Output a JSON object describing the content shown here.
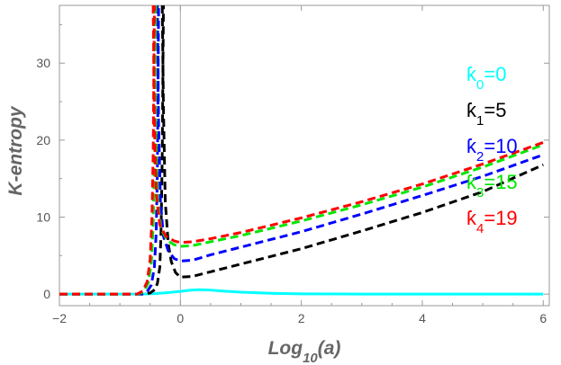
{
  "chart_data": {
    "type": "line",
    "xlabel": "Log10(a)",
    "xlabel_base": "Log",
    "xlabel_sub": "10",
    "xlabel_suffix": "(a)",
    "ylabel": "K-entropy",
    "xlim": [
      -2,
      6.1
    ],
    "ylim": [
      -1.5,
      37.5
    ],
    "x_ticks": [
      -2,
      0,
      2,
      4,
      6
    ],
    "y_ticks": [
      0,
      10,
      20,
      30
    ],
    "grid": false,
    "legend_position": "right",
    "series": [
      {
        "name": "ƙ0=0",
        "label_base": "ƙ",
        "label_sub": "0",
        "label_value": "=0",
        "color": "#00ffff",
        "dash": "solid",
        "points": [
          [
            -2,
            0
          ],
          [
            -1.0,
            0
          ],
          [
            -0.6,
            0.02
          ],
          [
            -0.4,
            0.08
          ],
          [
            -0.2,
            0.2
          ],
          [
            0,
            0.35
          ],
          [
            0.15,
            0.5
          ],
          [
            0.3,
            0.58
          ],
          [
            0.45,
            0.55
          ],
          [
            0.7,
            0.4
          ],
          [
            1,
            0.25
          ],
          [
            1.5,
            0.1
          ],
          [
            2,
            0.03
          ],
          [
            3,
            0.01
          ],
          [
            4,
            0
          ],
          [
            5,
            0
          ],
          [
            6,
            0
          ]
        ]
      },
      {
        "name": "ƙ1=5",
        "label_base": "ƙ",
        "label_sub": "1",
        "label_value": "=5",
        "color": "#000000",
        "dash": "dashed",
        "points": [
          [
            -2,
            0
          ],
          [
            -0.6,
            0
          ],
          [
            -0.5,
            0.15
          ],
          [
            -0.42,
            0.6
          ],
          [
            -0.38,
            1.4
          ],
          [
            -0.34,
            3.5
          ],
          [
            -0.32,
            8
          ],
          [
            -0.3,
            18
          ],
          [
            -0.28,
            37.5
          ]
        ],
        "tail": [
          [
            -0.3,
            37.5
          ],
          [
            -0.28,
            24
          ],
          [
            -0.25,
            12
          ],
          [
            -0.2,
            6.5
          ],
          [
            -0.15,
            4.2
          ],
          [
            -0.08,
            2.8
          ],
          [
            0,
            2.2
          ],
          [
            0.2,
            2.3
          ],
          [
            0.5,
            2.9
          ],
          [
            1,
            3.9
          ],
          [
            2,
            5.9
          ],
          [
            3,
            8.2
          ],
          [
            4,
            10.6
          ],
          [
            5,
            13.3
          ],
          [
            6,
            16.8
          ]
        ]
      },
      {
        "name": "ƙ2=10",
        "label_base": "ƙ",
        "label_sub": "2",
        "label_value": "=10",
        "color": "#0000ff",
        "dash": "dashed",
        "points": [
          [
            -2,
            0
          ],
          [
            -0.65,
            0
          ],
          [
            -0.55,
            0.3
          ],
          [
            -0.48,
            1.2
          ],
          [
            -0.43,
            3.5
          ],
          [
            -0.4,
            8
          ],
          [
            -0.38,
            16
          ],
          [
            -0.36,
            37.5
          ]
        ],
        "tail": [
          [
            -0.38,
            37.5
          ],
          [
            -0.36,
            22
          ],
          [
            -0.33,
            12
          ],
          [
            -0.28,
            7.5
          ],
          [
            -0.2,
            5.6
          ],
          [
            -0.1,
            4.6
          ],
          [
            0,
            4.3
          ],
          [
            0.2,
            4.4
          ],
          [
            0.5,
            5.1
          ],
          [
            1,
            6.1
          ],
          [
            2,
            8.1
          ],
          [
            3,
            10.4
          ],
          [
            4,
            12.8
          ],
          [
            5,
            15.3
          ],
          [
            6,
            18.1
          ]
        ]
      },
      {
        "name": "ƙ3=15",
        "label_base": "ƙ",
        "label_sub": "3",
        "label_value": "=15",
        "color": "#00e600",
        "dash": "dashed",
        "points": [
          [
            -2,
            0
          ],
          [
            -0.7,
            0
          ],
          [
            -0.6,
            0.35
          ],
          [
            -0.53,
            1.5
          ],
          [
            -0.48,
            4
          ],
          [
            -0.45,
            9
          ],
          [
            -0.43,
            17
          ],
          [
            -0.41,
            37.5
          ]
        ],
        "tail": [
          [
            -0.43,
            37.5
          ],
          [
            -0.41,
            22
          ],
          [
            -0.38,
            12.5
          ],
          [
            -0.32,
            8.5
          ],
          [
            -0.22,
            7
          ],
          [
            -0.1,
            6.4
          ],
          [
            0,
            6.2
          ],
          [
            0.2,
            6.3
          ],
          [
            0.5,
            6.8
          ],
          [
            1,
            7.6
          ],
          [
            2,
            9.5
          ],
          [
            3,
            11.6
          ],
          [
            4,
            13.9
          ],
          [
            5,
            16.5
          ],
          [
            6,
            19.4
          ]
        ]
      },
      {
        "name": "ƙ4=19",
        "label_base": "ƙ",
        "label_sub": "4",
        "label_value": "=19",
        "color": "#ff0000",
        "dash": "dashed",
        "points": [
          [
            -2,
            0
          ],
          [
            -0.72,
            0
          ],
          [
            -0.62,
            0.4
          ],
          [
            -0.55,
            1.6
          ],
          [
            -0.5,
            4.5
          ],
          [
            -0.47,
            10
          ],
          [
            -0.45,
            18
          ],
          [
            -0.43,
            37.5
          ]
        ],
        "tail": [
          [
            -0.45,
            37.5
          ],
          [
            -0.43,
            23
          ],
          [
            -0.4,
            13
          ],
          [
            -0.34,
            9
          ],
          [
            -0.24,
            7.5
          ],
          [
            -0.1,
            6.9
          ],
          [
            0,
            6.7
          ],
          [
            0.2,
            6.8
          ],
          [
            0.5,
            7.2
          ],
          [
            1,
            8.0
          ],
          [
            2,
            9.9
          ],
          [
            3,
            12.0
          ],
          [
            4,
            14.3
          ],
          [
            5,
            16.9
          ],
          [
            6,
            19.7
          ]
        ]
      }
    ]
  }
}
